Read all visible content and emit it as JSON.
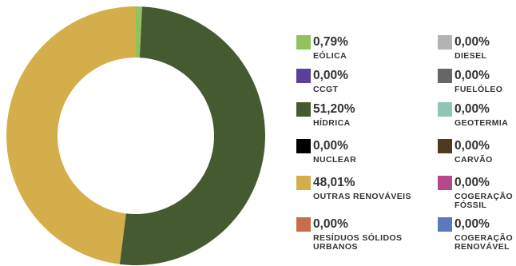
{
  "chart_data": {
    "type": "pie",
    "style": "donut",
    "legend_position": "right",
    "slices": [
      {
        "pct": "0,79%",
        "value": 0.79,
        "label": "EÓLICA",
        "color": "#94c160"
      },
      {
        "pct": "0,00%",
        "value": 0.0,
        "label": "DIESEL",
        "color": "#b3b3b3"
      },
      {
        "pct": "0,00%",
        "value": 0.0,
        "label": "CCGT",
        "color": "#5a3f9b"
      },
      {
        "pct": "0,00%",
        "value": 0.0,
        "label": "FUELÓLEO",
        "color": "#666666"
      },
      {
        "pct": "51,20%",
        "value": 51.2,
        "label": "HÍDRICA",
        "color": "#465a32"
      },
      {
        "pct": "0,00%",
        "value": 0.0,
        "label": "GEOTERMIA",
        "color": "#8fc4b7"
      },
      {
        "pct": "0,00%",
        "value": 0.0,
        "label": "NUCLEAR",
        "color": "#000000"
      },
      {
        "pct": "0,00%",
        "value": 0.0,
        "label": "CARVÃO",
        "color": "#4f3a1f"
      },
      {
        "pct": "48,01%",
        "value": 48.01,
        "label": "OUTRAS RENOVÁVEIS",
        "color": "#d4ae4a"
      },
      {
        "pct": "0,00%",
        "value": 0.0,
        "label": "COGERAÇÃO FÓSSIL",
        "label_lines": [
          "COGERAÇÃO",
          "FÓSSIL"
        ],
        "color": "#b8488c"
      },
      {
        "pct": "0,00%",
        "value": 0.0,
        "label": "RESÍDUOS SÓLIDOS URBANOS",
        "label_lines": [
          "RESÍDUOS SÓLIDOS",
          "URBANOS"
        ],
        "color": "#c66e49"
      },
      {
        "pct": "0,00%",
        "value": 0.0,
        "label": "COGERAÇÃO RENOVÁVEL",
        "label_lines": [
          "COGERAÇÃO",
          "RENOVÁVEL"
        ],
        "color": "#5b78c0"
      }
    ]
  }
}
